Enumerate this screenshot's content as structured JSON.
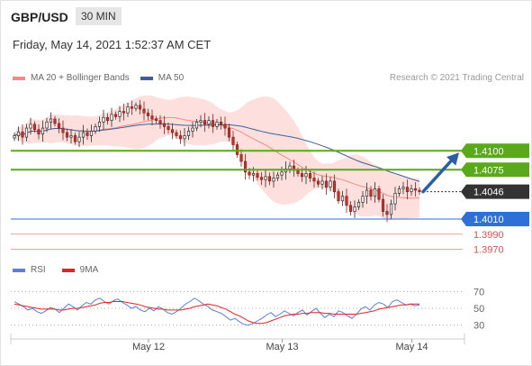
{
  "header": {
    "symbol": "GBP/USD",
    "timeframe": "30 MIN",
    "datetime": "Friday, May 14, 2021 1:52:37 AM CET",
    "copyright": "Research © 2021 Trading Central"
  },
  "colors": {
    "green_level": "#5aa81c",
    "blue_level": "#2f6fd8",
    "red_level": "#d9534f",
    "price_tag": "#333333",
    "ma20": "#f28b86",
    "ma50": "#3d5f99",
    "bollinger_fill": "#fde0dd",
    "rsi": "#5b7ed8",
    "rsi_ma": "#e0242a",
    "arrow": "#2a5fa8"
  },
  "chart_data": [
    {
      "type": "candlestick",
      "legend": [
        {
          "name": "MA 20 + Bollinger Bands",
          "color": "#f28b86"
        },
        {
          "name": "MA 50",
          "color": "#3d5f99"
        }
      ],
      "x_ticks": [
        "May 12",
        "May 13",
        "May 14"
      ],
      "current_price": 1.4046,
      "ylim": [
        1.396,
        1.418
      ],
      "levels": [
        {
          "value": 1.41,
          "label": "1.4100",
          "kind": "resistance"
        },
        {
          "value": 1.4075,
          "label": "1.4075",
          "kind": "resistance"
        },
        {
          "value": 1.4046,
          "label": "1.4046",
          "kind": "current"
        },
        {
          "value": 1.401,
          "label": "1.4010",
          "kind": "pivot"
        },
        {
          "value": 1.399,
          "label": "1.3990",
          "kind": "support"
        },
        {
          "value": 1.397,
          "label": "1.3970",
          "kind": "support"
        }
      ],
      "close": [
        1.412,
        1.4125,
        1.4118,
        1.413,
        1.4135,
        1.4128,
        1.4122,
        1.413,
        1.4138,
        1.4142,
        1.4136,
        1.413,
        1.4124,
        1.4118,
        1.412,
        1.4112,
        1.4118,
        1.4124,
        1.412,
        1.4126,
        1.4132,
        1.4138,
        1.4144,
        1.414,
        1.4148,
        1.4145,
        1.4152,
        1.415,
        1.4158,
        1.4156,
        1.416,
        1.4155,
        1.415,
        1.4146,
        1.4142,
        1.414,
        1.4136,
        1.4132,
        1.4128,
        1.4124,
        1.412,
        1.4116,
        1.412,
        1.4126,
        1.413,
        1.4138,
        1.414,
        1.4135,
        1.414,
        1.4132,
        1.4138,
        1.4135,
        1.413,
        1.4118,
        1.4108,
        1.4095,
        1.4086,
        1.4072,
        1.4068,
        1.407,
        1.4065,
        1.4062,
        1.4066,
        1.406,
        1.4064,
        1.4068,
        1.4072,
        1.4076,
        1.408,
        1.4074,
        1.407,
        1.4066,
        1.407,
        1.4064,
        1.406,
        1.4056,
        1.406,
        1.4052,
        1.406,
        1.4046,
        1.4034,
        1.404,
        1.4028,
        1.402,
        1.4026,
        1.4032,
        1.404,
        1.4048,
        1.404,
        1.405,
        1.4036,
        1.402,
        1.4016,
        1.403,
        1.4044,
        1.405,
        1.4052,
        1.4046,
        1.405,
        1.4048,
        1.4046
      ]
    },
    {
      "type": "line",
      "legend": [
        {
          "name": "RSI",
          "color": "#5b7ed8"
        },
        {
          "name": "9MA",
          "color": "#e0242a"
        }
      ],
      "y_ticks": [
        70,
        50,
        30
      ],
      "ylim": [
        20,
        80
      ],
      "series": [
        {
          "name": "RSI",
          "values": [
            58,
            55,
            52,
            48,
            50,
            46,
            44,
            47,
            51,
            49,
            45,
            50,
            55,
            52,
            48,
            53,
            57,
            55,
            60,
            62,
            58,
            55,
            59,
            61,
            57,
            54,
            50,
            52,
            48,
            46,
            50,
            47,
            52,
            49,
            45,
            43,
            46,
            50,
            55,
            58,
            62,
            59,
            55,
            52,
            48,
            46,
            44,
            40,
            36,
            38,
            34,
            31,
            30,
            32,
            35,
            38,
            42,
            45,
            40,
            43,
            47,
            44,
            41,
            45,
            48,
            42,
            46,
            50,
            44,
            39,
            43,
            40,
            47,
            45,
            41,
            38,
            43,
            49,
            52,
            48,
            54,
            57,
            55,
            51,
            58,
            60,
            57,
            54,
            55,
            53,
            54
          ]
        },
        {
          "name": "9MA",
          "values": [
            55,
            54,
            53,
            52,
            51,
            50,
            49,
            49,
            49,
            49,
            48,
            48,
            49,
            50,
            50,
            51,
            52,
            53,
            54,
            56,
            57,
            57,
            58,
            58,
            58,
            57,
            56,
            55,
            54,
            52,
            51,
            50,
            49,
            49,
            48,
            48,
            48,
            48,
            49,
            50,
            52,
            53,
            54,
            55,
            54,
            53,
            51,
            49,
            46,
            43,
            41,
            38,
            35,
            33,
            32,
            32,
            33,
            35,
            37,
            39,
            41,
            42,
            43,
            43,
            44,
            44,
            45,
            45,
            45,
            44,
            44,
            43,
            43,
            43,
            43,
            43,
            43,
            44,
            45,
            46,
            47,
            49,
            50,
            51,
            52,
            53,
            54,
            54,
            55,
            55,
            55
          ]
        }
      ]
    }
  ]
}
